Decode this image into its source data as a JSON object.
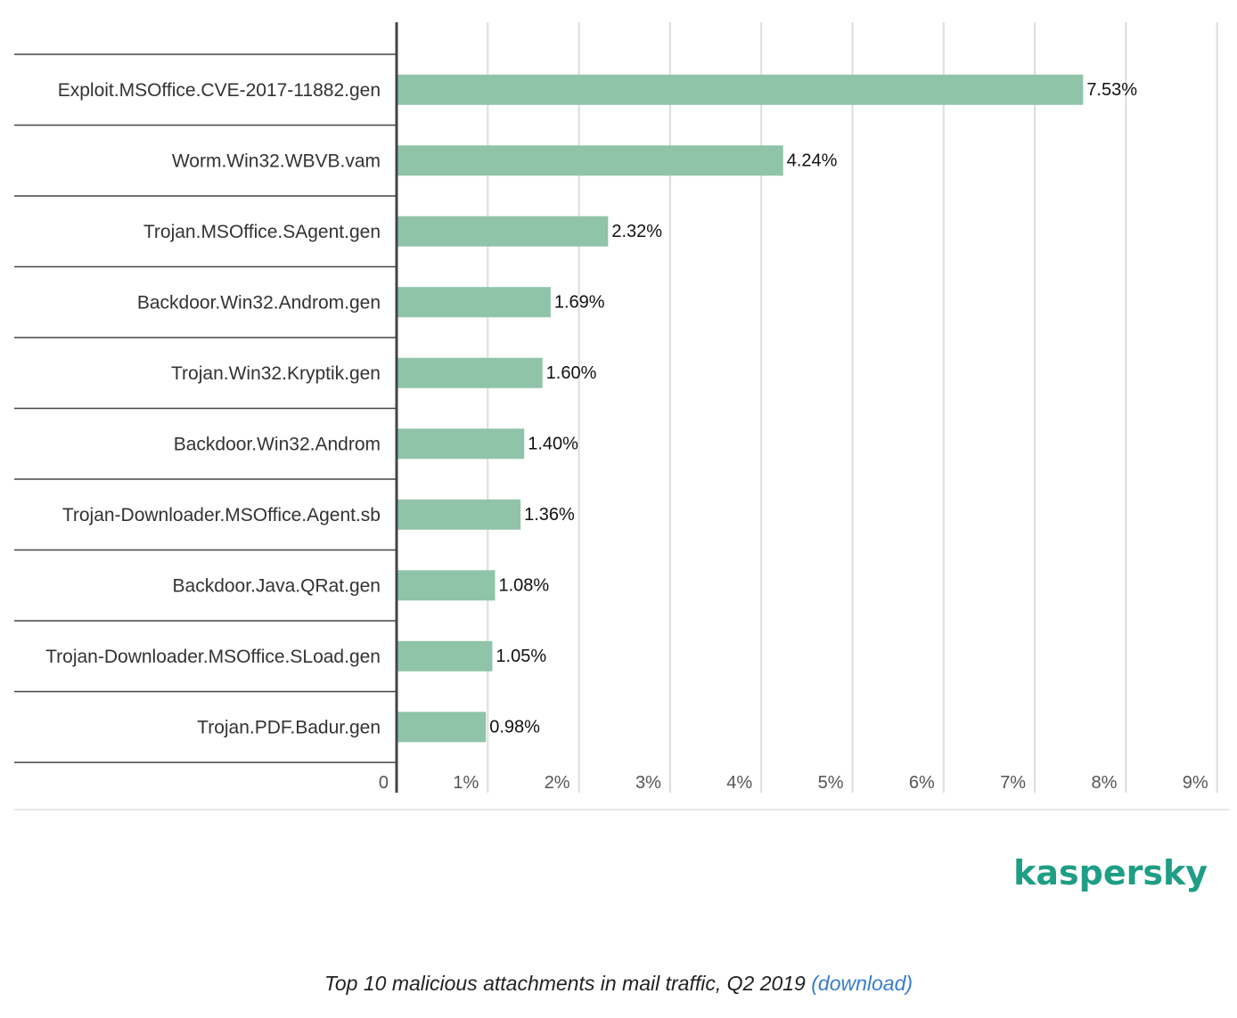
{
  "chart_data": {
    "type": "bar",
    "orientation": "horizontal",
    "categories": [
      "Exploit.MSOffice.CVE-2017-11882.gen",
      "Worm.Win32.WBVB.vam",
      "Trojan.MSOffice.SAgent.gen",
      "Backdoor.Win32.Androm.gen",
      "Trojan.Win32.Kryptik.gen",
      "Backdoor.Win32.Androm",
      "Trojan-Downloader.MSOffice.Agent.sb",
      "Backdoor.Java.QRat.gen",
      "Trojan-Downloader.MSOffice.SLoad.gen",
      "Trojan.PDF.Badur.gen"
    ],
    "values": [
      7.53,
      4.24,
      2.32,
      1.69,
      1.6,
      1.4,
      1.36,
      1.08,
      1.05,
      0.98
    ],
    "value_labels": [
      "7.53%",
      "4.24%",
      "2.32%",
      "1.69%",
      "1.60%",
      "1.40%",
      "1.36%",
      "1.08%",
      "1.05%",
      "0.98%"
    ],
    "xlim": [
      0,
      9
    ],
    "ticks": [
      0,
      1,
      2,
      3,
      4,
      5,
      6,
      7,
      8,
      9
    ],
    "tick_labels": [
      "0",
      "1%",
      "2%",
      "3%",
      "4%",
      "5%",
      "6%",
      "7%",
      "8%",
      "9%"
    ],
    "grid": true,
    "bar_color": "#8fc4a8",
    "title": "",
    "xlabel": "",
    "ylabel": ""
  },
  "branding": {
    "logo_text": "kaspersky",
    "logo_color": "#1e9e85"
  },
  "caption": {
    "text": "Top 10 malicious attachments in mail traffic, Q2 2019",
    "link_text": "(download)",
    "link_color": "#3a7dc9"
  }
}
